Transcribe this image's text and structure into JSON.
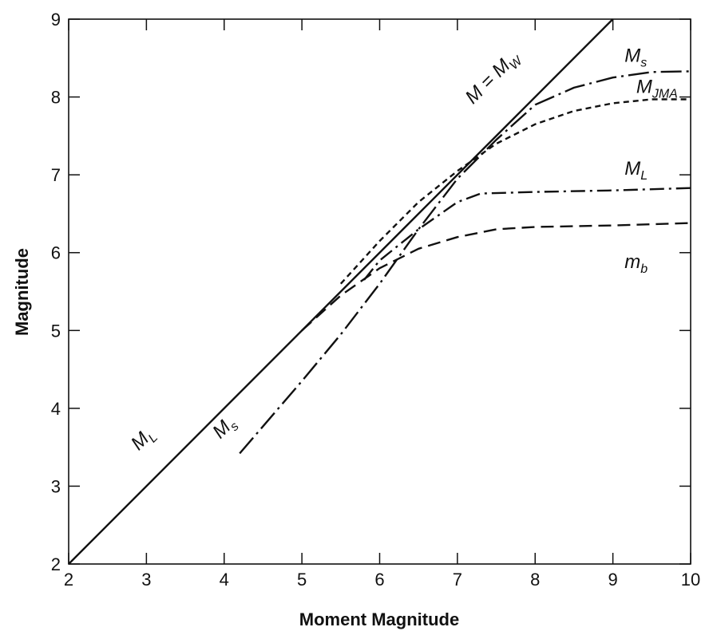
{
  "chart_data": {
    "type": "line",
    "title": "",
    "xlabel": "Moment Magnitude",
    "ylabel": "Magnitude",
    "xlim": [
      2,
      10
    ],
    "ylim": [
      2,
      9
    ],
    "xticks": [
      2,
      3,
      4,
      5,
      6,
      7,
      8,
      9,
      10
    ],
    "yticks": [
      2,
      3,
      4,
      5,
      6,
      7,
      8,
      9
    ],
    "grid": false,
    "legend": "none",
    "series": [
      {
        "name": "M = MW",
        "style": "solid",
        "x": [
          2,
          9
        ],
        "y": [
          2,
          9
        ]
      },
      {
        "name": "Ms",
        "style": "long-dash-dot",
        "x": [
          4.2,
          5.0,
          5.5,
          6.0,
          6.5,
          7.0,
          7.5,
          8.0,
          8.5,
          9.0,
          9.5,
          10.0
        ],
        "y": [
          3.42,
          4.35,
          4.95,
          5.6,
          6.3,
          6.95,
          7.45,
          7.9,
          8.12,
          8.25,
          8.32,
          8.33
        ]
      },
      {
        "name": "MJMA",
        "style": "short-dash",
        "x": [
          5.5,
          6.0,
          6.5,
          7.0,
          7.5,
          8.0,
          8.5,
          9.0,
          9.5,
          10.0
        ],
        "y": [
          5.6,
          6.15,
          6.65,
          7.05,
          7.4,
          7.65,
          7.82,
          7.92,
          7.97,
          7.97
        ]
      },
      {
        "name": "ML",
        "style": "dash-dot",
        "x": [
          5.8,
          6.0,
          6.5,
          7.0,
          7.3,
          8.0,
          9.0,
          10.0
        ],
        "y": [
          5.65,
          5.9,
          6.3,
          6.65,
          6.76,
          6.78,
          6.8,
          6.83
        ]
      },
      {
        "name": "mb",
        "style": "dash",
        "x": [
          5.0,
          5.5,
          6.0,
          6.5,
          7.0,
          7.5,
          8.0,
          9.0,
          10.0
        ],
        "y": [
          5.0,
          5.45,
          5.8,
          6.05,
          6.2,
          6.3,
          6.33,
          6.35,
          6.38
        ]
      }
    ],
    "annotations": [
      {
        "id": "m-mw",
        "text": "M = M",
        "sub": "W",
        "x": 7.2,
        "y": 7.9,
        "rotate": -45
      },
      {
        "id": "ms-top",
        "text": "M",
        "sub": "s",
        "x": 9.15,
        "y": 8.45
      },
      {
        "id": "mjma",
        "text": "M",
        "sub": "JMA",
        "x": 9.3,
        "y": 8.05
      },
      {
        "id": "ml-right",
        "text": "M",
        "sub": "L",
        "x": 9.15,
        "y": 7.0
      },
      {
        "id": "mb-right",
        "text": "m",
        "sub": "b",
        "x": 9.15,
        "y": 5.8
      },
      {
        "id": "ml-left",
        "text": "M",
        "sub": "L",
        "x": 2.9,
        "y": 3.45,
        "rotate": -45
      },
      {
        "id": "ms-left",
        "text": "M",
        "sub": "s",
        "x": 3.95,
        "y": 3.6,
        "rotate": -45
      }
    ]
  }
}
